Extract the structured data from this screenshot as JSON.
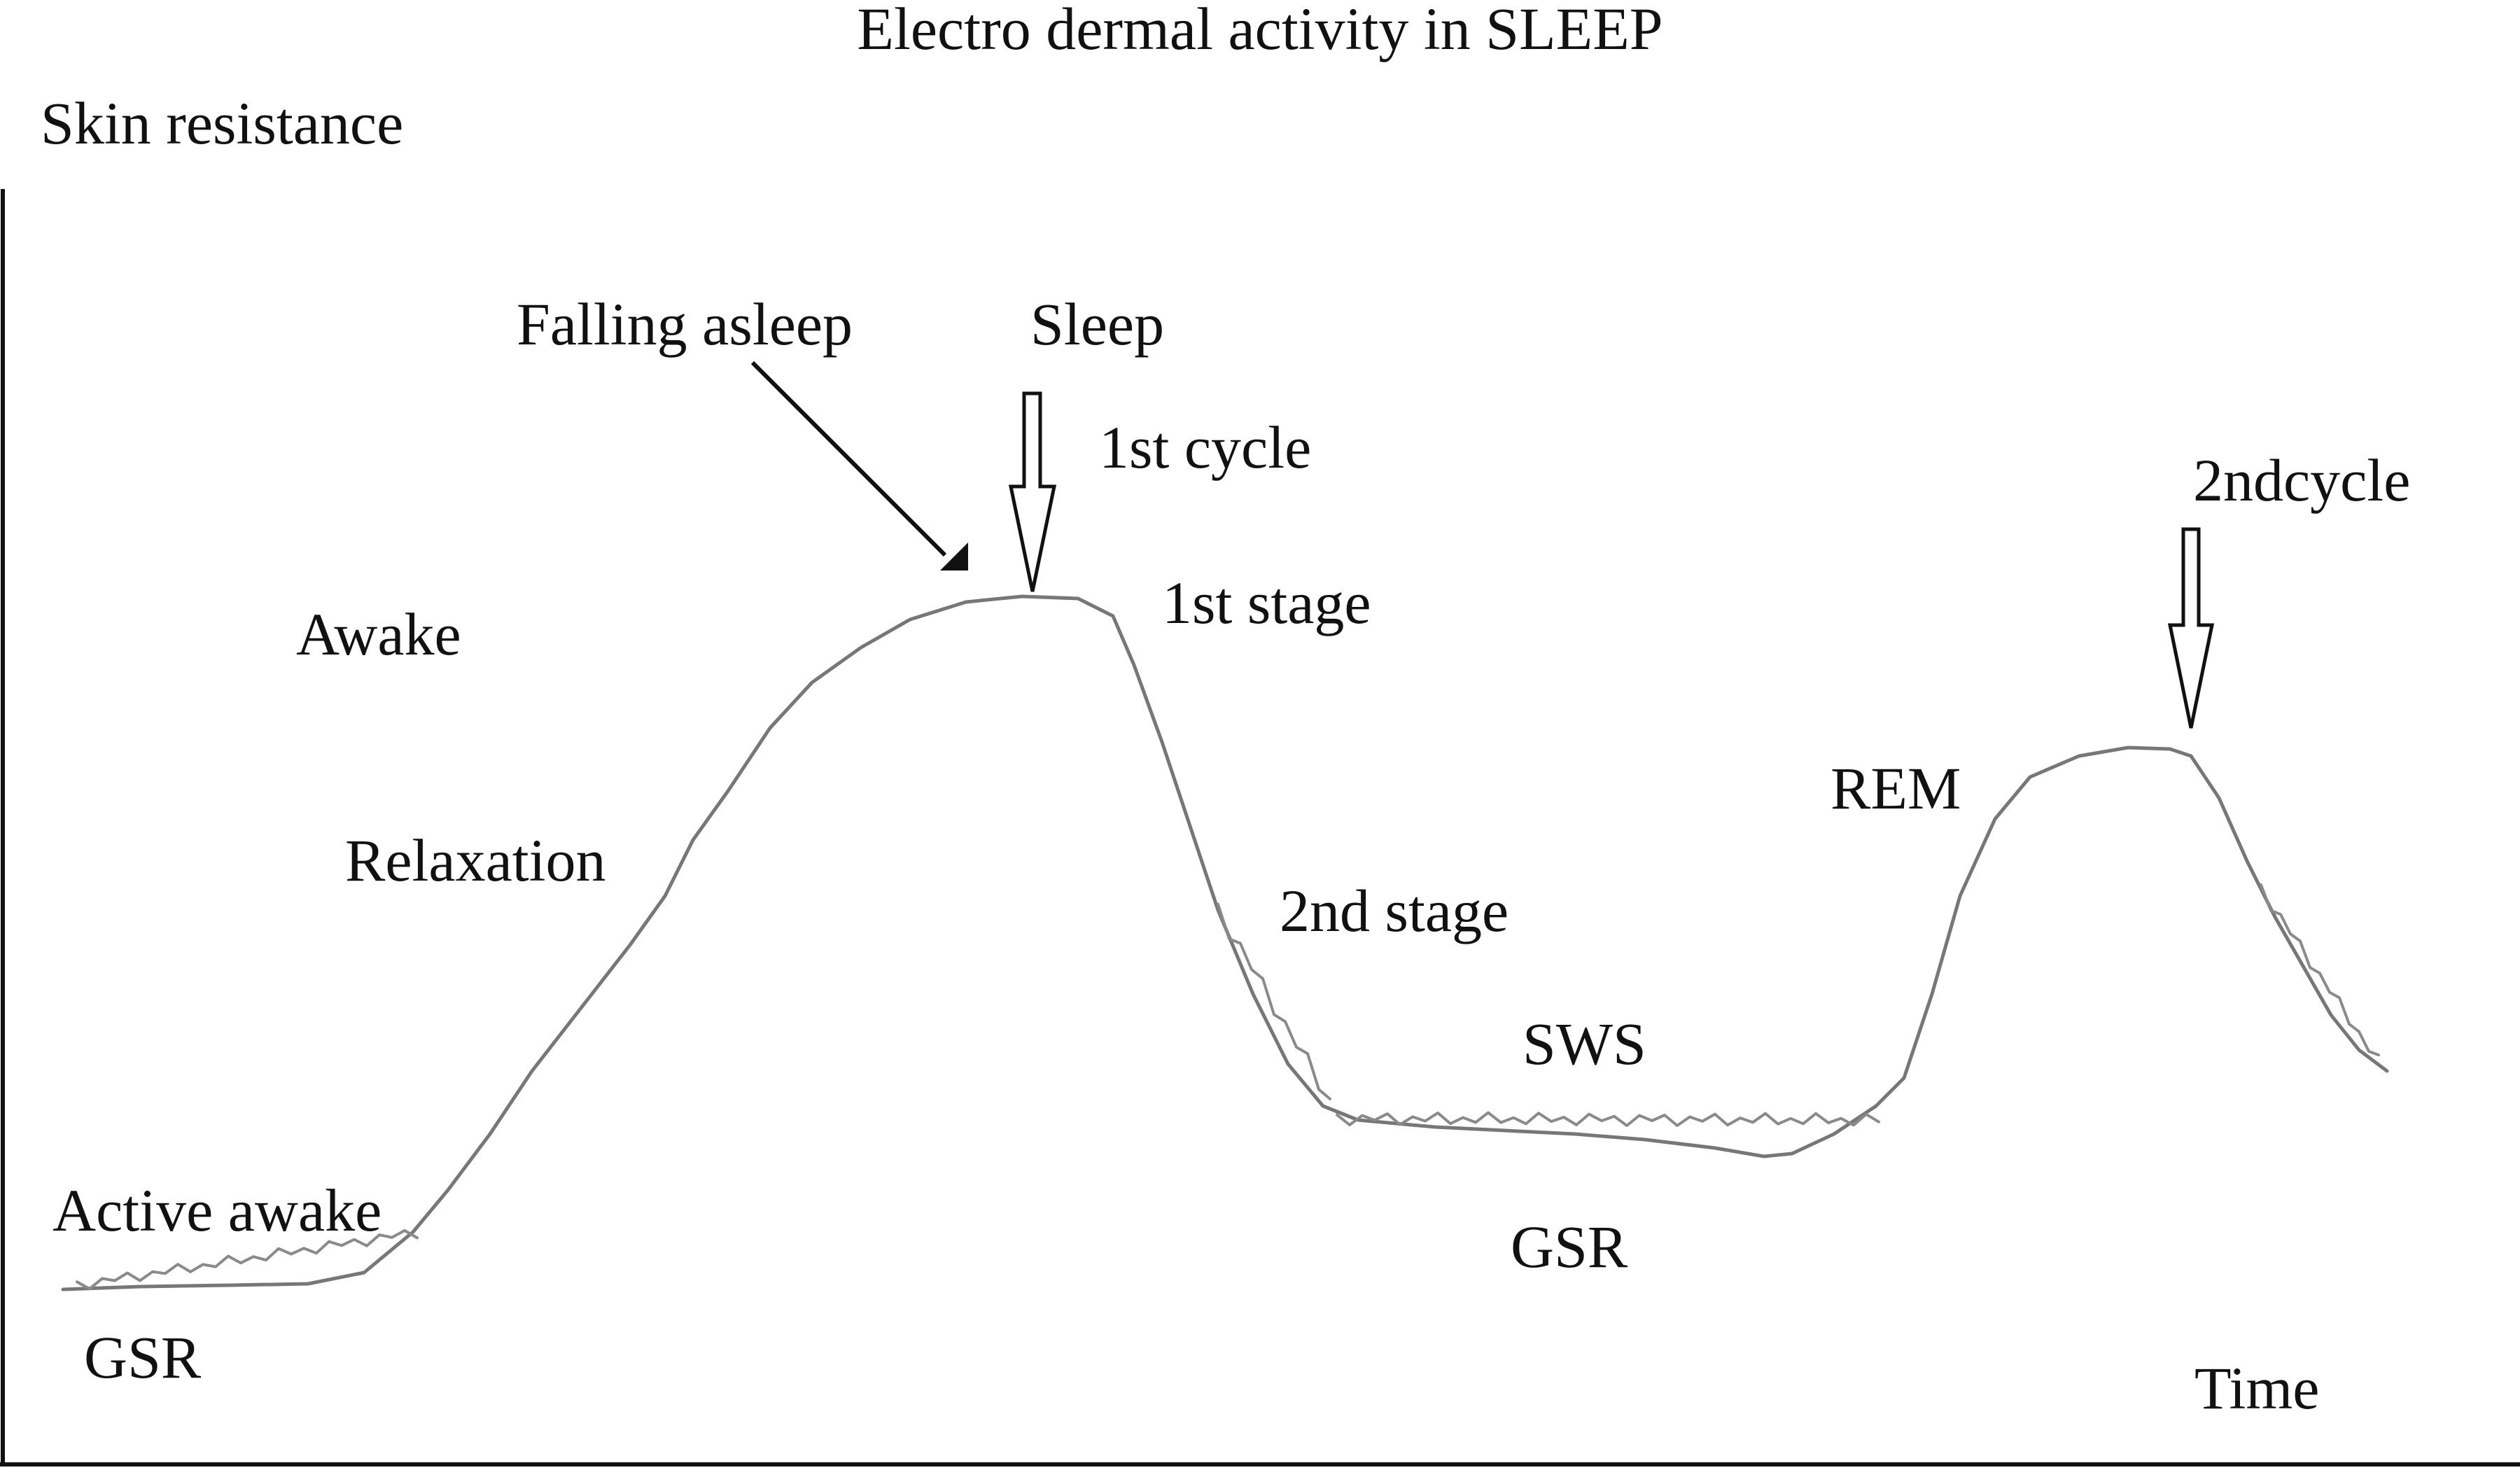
{
  "chart_data": {
    "type": "line",
    "title": "Electro dermal activity in SLEEP",
    "ylabel": "Skin resistance",
    "xlabel": "Time",
    "grid": false,
    "colors": {
      "curve": "#777777",
      "axis": "#111111",
      "text": "#111111"
    },
    "annotations": {
      "active_awake": "Active awake",
      "gsr_left": "GSR",
      "awake": "Awake",
      "relaxation": "Relaxation",
      "falling_asleep": "Falling asleep",
      "sleep": "Sleep",
      "first_cycle": "1st cycle",
      "first_stage": "1st stage",
      "second_stage": "2nd stage",
      "sws": "SWS",
      "gsr_mid": "GSR",
      "rem": "REM",
      "second_cycle": "2ndcycle"
    }
  }
}
